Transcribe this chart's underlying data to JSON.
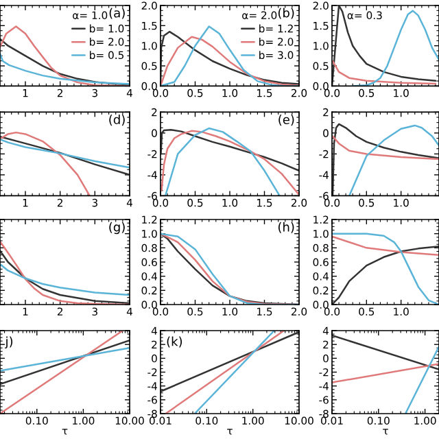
{
  "chart_data": [
    {
      "type": "line",
      "xlim": [
        0.27,
        4
      ],
      "ylim": [
        0,
        2
      ],
      "xticks": [
        1,
        2,
        3,
        4
      ],
      "tick_labels": "x",
      "legend": "right",
      "legend_title": "α= 1.0",
      "annotations": [
        "(a)"
      ],
      "series": [
        {
          "name": "b= 1.0",
          "color": "#333333",
          "x": [
            0.27,
            0.5,
            1,
            1.5,
            2,
            2.5,
            3,
            3.5,
            4
          ],
          "values": [
            1.17,
            1.0,
            0.75,
            0.5,
            0.3,
            0.18,
            0.1,
            0.06,
            0.04
          ]
        },
        {
          "name": "b= 2.0",
          "color": "#e07a7a",
          "x": [
            0.27,
            0.45,
            0.73,
            1,
            1.25,
            1.5,
            1.75,
            2,
            2.5,
            3,
            4
          ],
          "values": [
            0.97,
            1.3,
            1.48,
            1.3,
            1.0,
            0.72,
            0.45,
            0.26,
            0.09,
            0.02,
            0.0
          ]
        },
        {
          "name": "b= 0.5",
          "color": "#5ab4d8",
          "x": [
            0.27,
            0.35,
            0.53,
            1,
            1.5,
            2,
            3,
            4
          ],
          "values": [
            0.8,
            0.62,
            0.52,
            0.38,
            0.26,
            0.18,
            0.09,
            0.05
          ]
        }
      ]
    },
    {
      "type": "line",
      "xlim": [
        0,
        2
      ],
      "ylim": [
        0,
        2
      ],
      "xticks": [
        {
          "value": 0,
          "label": "0.0"
        },
        {
          "value": 0.5,
          "label": "0.5"
        },
        {
          "value": 1,
          "label": "1.0"
        },
        {
          "value": 1.5,
          "label": "1.5"
        },
        {
          "value": 2,
          "label": "2.0"
        }
      ],
      "yticks": [
        {
          "value": 0,
          "label": "0.0"
        },
        {
          "value": 0.5,
          "label": "0.5"
        },
        {
          "value": 1,
          "label": "1.0"
        },
        {
          "value": 1.5,
          "label": "1.5"
        },
        {
          "value": 2,
          "label": "2.0"
        }
      ],
      "legend": "right",
      "legend_title": "α= 2.0",
      "annotations": [
        "(b)"
      ],
      "series": [
        {
          "name": "b= 1.2",
          "color": "#333333",
          "x": [
            0,
            0.01,
            0.05,
            0.13,
            0.25,
            0.5,
            0.75,
            1,
            1.25,
            1.5,
            1.75,
            2
          ],
          "values": [
            0,
            0.95,
            1.25,
            1.35,
            1.22,
            0.89,
            0.62,
            0.43,
            0.27,
            0.15,
            0.08,
            0.05
          ]
        },
        {
          "name": "b= 2.0",
          "color": "#e07a7a",
          "x": [
            0,
            0.1,
            0.25,
            0.45,
            0.6,
            0.75,
            1,
            1.25,
            1.5,
            1.75,
            2
          ],
          "values": [
            0,
            0.5,
            0.95,
            1.22,
            1.15,
            0.98,
            0.6,
            0.3,
            0.12,
            0.04,
            0.01
          ]
        },
        {
          "name": "b= 3.0",
          "color": "#5ab4d8",
          "x": [
            0,
            0.2,
            0.35,
            0.5,
            0.7,
            0.85,
            1,
            1.2,
            1.4,
            1.6,
            1.8,
            2
          ],
          "values": [
            0,
            0.1,
            0.5,
            1.0,
            1.48,
            1.3,
            0.9,
            0.4,
            0.12,
            0.03,
            0,
            0
          ]
        }
      ]
    },
    {
      "type": "line",
      "xlim": [
        0,
        1.55
      ],
      "ylim": [
        0,
        2
      ],
      "xticks": [
        {
          "value": 0,
          "label": "0.0"
        },
        {
          "value": 0.5,
          "label": "0.5"
        },
        {
          "value": 1,
          "label": "1.0"
        }
      ],
      "yticks": [
        {
          "value": 0,
          "label": "0.0"
        },
        {
          "value": 0.5,
          "label": "0.5"
        },
        {
          "value": 1,
          "label": "1.0"
        },
        {
          "value": 1.5,
          "label": "1.5"
        },
        {
          "value": 2,
          "label": "2.0"
        }
      ],
      "legend_title": "α= 0.3",
      "series": [
        {
          "color": "#333333",
          "x": [
            0,
            0.05,
            0.1,
            0.15,
            0.23,
            0.3,
            0.4,
            0.5,
            0.75,
            1,
            1.25,
            1.5
          ],
          "values": [
            0,
            1.0,
            2.0,
            1.85,
            1.33,
            1.0,
            0.75,
            0.55,
            0.35,
            0.23,
            0.17,
            0.13
          ]
        },
        {
          "color": "#e07a7a",
          "x": [
            0.01,
            0.1,
            0.25,
            0.5,
            1,
            1.5
          ],
          "values": [
            0.62,
            0.35,
            0.2,
            0.13,
            0.08,
            0.06
          ]
        },
        {
          "color": "#5ab4d8",
          "x": [
            0.3,
            0.5,
            0.6,
            0.7,
            0.8,
            0.9,
            1,
            1.1,
            1.17,
            1.25,
            1.35,
            1.45,
            1.55
          ],
          "values": [
            0,
            0.02,
            0.08,
            0.2,
            0.5,
            0.95,
            1.4,
            1.78,
            1.87,
            1.75,
            1.4,
            0.95,
            0.65
          ]
        }
      ]
    },
    {
      "type": "line",
      "xlim": [
        0.27,
        4
      ],
      "ylim": [
        -6,
        2
      ],
      "xticks": [
        1,
        2,
        3,
        4
      ],
      "tick_labels": "x",
      "annotations": [
        "(d)"
      ],
      "series": [
        {
          "color": "#333333",
          "x": [
            0.27,
            1,
            2,
            3,
            4
          ],
          "values": [
            -0.35,
            -1.0,
            -1.9,
            -3.0,
            -4.0
          ]
        },
        {
          "color": "#e07a7a",
          "x": [
            0.27,
            0.5,
            0.73,
            1,
            1.5,
            2,
            2.5,
            2.85
          ],
          "values": [
            -0.57,
            -0.1,
            0.05,
            -0.1,
            -0.8,
            -2.1,
            -4.0,
            -6
          ]
        },
        {
          "color": "#5ab4d8",
          "x": [
            0.27,
            0.5,
            1,
            1.5,
            2,
            3,
            4
          ],
          "values": [
            -0.6,
            -0.9,
            -1.35,
            -1.65,
            -1.95,
            -2.7,
            -3.3
          ]
        }
      ]
    },
    {
      "type": "line",
      "xlim": [
        0,
        2
      ],
      "ylim": [
        -6,
        2
      ],
      "xticks": [
        {
          "value": 0,
          "label": "0.0"
        },
        {
          "value": 0.5,
          "label": "0.5"
        },
        {
          "value": 1,
          "label": "1.0"
        },
        {
          "value": 1.5,
          "label": "1.5"
        },
        {
          "value": 2,
          "label": "2.0"
        }
      ],
      "yticks": [
        {
          "value": -6,
          "label": "-6"
        },
        {
          "value": -4,
          "label": "-4"
        },
        {
          "value": -2,
          "label": "-2"
        },
        {
          "value": 0,
          "label": "0"
        },
        {
          "value": 2,
          "label": "2"
        }
      ],
      "annotations": [
        "(e)"
      ],
      "series": [
        {
          "color": "#333333",
          "x": [
            0.005,
            0.02,
            0.05,
            0.15,
            0.3,
            0.5,
            0.75,
            1,
            1.25,
            1.5,
            1.75,
            2
          ],
          "values": [
            -2.0,
            0.0,
            0.25,
            0.3,
            0.15,
            -0.3,
            -0.85,
            -1.3,
            -1.8,
            -2.3,
            -2.9,
            -3.6
          ]
        },
        {
          "color": "#e07a7a",
          "x": [
            0.015,
            0.05,
            0.1,
            0.2,
            0.3,
            0.45,
            0.6,
            0.8,
            1,
            1.3,
            1.5,
            1.75,
            2
          ],
          "values": [
            -5.5,
            -3.0,
            -1.5,
            -0.5,
            -0.1,
            0.2,
            0.1,
            -0.3,
            -0.8,
            -1.75,
            -2.5,
            -3.9,
            -5.9
          ]
        },
        {
          "color": "#5ab4d8",
          "x": [
            0.07,
            0.25,
            0.5,
            0.7,
            0.9,
            1.1,
            1.3,
            1.5,
            1.72
          ],
          "values": [
            -6,
            -2.0,
            -0.2,
            0.45,
            0.1,
            -0.8,
            -1.75,
            -3.6,
            -6
          ]
        }
      ]
    },
    {
      "type": "line",
      "xlim": [
        0,
        1.55
      ],
      "ylim": [
        -6,
        2
      ],
      "xticks": [
        {
          "value": 0,
          "label": "0.0"
        },
        {
          "value": 0.5,
          "label": "0.5"
        },
        {
          "value": 1,
          "label": "1.0"
        }
      ],
      "yticks": [
        {
          "value": -6,
          "label": "-6"
        },
        {
          "value": -4,
          "label": "-4"
        },
        {
          "value": -2,
          "label": "-2"
        },
        {
          "value": 0,
          "label": "0"
        },
        {
          "value": 2,
          "label": "2"
        }
      ],
      "series": [
        {
          "color": "#333333",
          "x": [
            0.01,
            0.03,
            0.06,
            0.1,
            0.2,
            0.35,
            0.5,
            0.75,
            1,
            1.25,
            1.55
          ],
          "values": [
            -6,
            -1,
            0.5,
            0.85,
            0.5,
            -0.3,
            -0.85,
            -1.4,
            -1.8,
            -2.1,
            -2.4
          ]
        },
        {
          "color": "#e07a7a",
          "x": [
            0.01,
            0.1,
            0.25,
            0.5,
            1,
            1.55
          ],
          "values": [
            -0.3,
            -1.0,
            -1.7,
            -2.0,
            -2.3,
            -2.5
          ]
        },
        {
          "color": "#5ab4d8",
          "x": [
            0.25,
            0.5,
            0.75,
            1,
            1.2,
            1.3,
            1.45,
            1.55
          ],
          "values": [
            -6,
            -2.2,
            -0.7,
            0.4,
            0.72,
            0.5,
            -0.3,
            -1.2
          ]
        }
      ]
    },
    {
      "type": "line",
      "xlim": [
        0.27,
        4
      ],
      "ylim": [
        0,
        1.2
      ],
      "xticks": [
        1,
        2,
        3,
        4
      ],
      "tick_labels": "x",
      "annotations": [
        "(g)"
      ],
      "series": [
        {
          "color": "#333333",
          "x": [
            0.27,
            0.5,
            1,
            1.5,
            2,
            3,
            4
          ],
          "values": [
            0.76,
            0.6,
            0.37,
            0.22,
            0.135,
            0.05,
            0.02
          ]
        },
        {
          "color": "#e07a7a",
          "x": [
            0.27,
            0.5,
            0.75,
            1,
            1.25,
            1.5,
            2,
            2.5,
            3,
            4
          ],
          "values": [
            0.89,
            0.73,
            0.55,
            0.36,
            0.23,
            0.135,
            0.05,
            0.02,
            0.01,
            0.0
          ]
        },
        {
          "color": "#5ab4d8",
          "x": [
            0.27,
            0.5,
            1,
            1.5,
            2,
            3,
            4
          ],
          "values": [
            0.57,
            0.48,
            0.37,
            0.29,
            0.24,
            0.17,
            0.135
          ]
        }
      ]
    },
    {
      "type": "line",
      "xlim": [
        0,
        2
      ],
      "ylim": [
        0,
        1.2
      ],
      "xticks": [
        {
          "value": 0,
          "label": "0.0"
        },
        {
          "value": 0.5,
          "label": "0.5"
        },
        {
          "value": 1,
          "label": "1.0"
        },
        {
          "value": 1.5,
          "label": "1.5"
        },
        {
          "value": 2,
          "label": "2.0"
        }
      ],
      "yticks": [
        {
          "value": 0,
          "label": "0.0"
        },
        {
          "value": 0.2,
          "label": "0.2"
        },
        {
          "value": 0.4,
          "label": "0.4"
        },
        {
          "value": 0.6,
          "label": "0.6"
        },
        {
          "value": 0.8,
          "label": "0.8"
        },
        {
          "value": 1,
          "label": "1.0"
        },
        {
          "value": 1.2,
          "label": "1.2"
        }
      ],
      "annotations": [
        "(h)"
      ],
      "series": [
        {
          "color": "#333333",
          "x": [
            0,
            0.1,
            0.25,
            0.5,
            0.75,
            1,
            1.25,
            1.5,
            2
          ],
          "values": [
            1.0,
            0.93,
            0.75,
            0.5,
            0.27,
            0.12,
            0.05,
            0.02,
            0.0
          ]
        },
        {
          "color": "#e07a7a",
          "x": [
            0,
            0.25,
            0.5,
            0.75,
            1,
            1.25,
            1.5,
            2
          ],
          "values": [
            1.0,
            0.88,
            0.63,
            0.33,
            0.12,
            0.04,
            0.01,
            0.0
          ]
        },
        {
          "color": "#5ab4d8",
          "x": [
            0,
            0.25,
            0.5,
            0.75,
            1,
            1.25,
            1.5,
            2
          ],
          "values": [
            1.0,
            0.96,
            0.78,
            0.43,
            0.12,
            0.02,
            0.0,
            0.0
          ]
        }
      ]
    },
    {
      "type": "line",
      "xlim": [
        0,
        1.55
      ],
      "ylim": [
        0,
        1.2
      ],
      "xticks": [
        {
          "value": 0,
          "label": "0.0"
        },
        {
          "value": 0.5,
          "label": "0.5"
        },
        {
          "value": 1,
          "label": "1.0"
        }
      ],
      "yticks": [
        {
          "value": 0,
          "label": "0.0"
        },
        {
          "value": 0.2,
          "label": "0.2"
        },
        {
          "value": 0.4,
          "label": "0.4"
        },
        {
          "value": 0.6,
          "label": "0.6"
        },
        {
          "value": 0.8,
          "label": "0.8"
        },
        {
          "value": 1,
          "label": "1.0"
        },
        {
          "value": 1.2,
          "label": "1.2"
        }
      ],
      "series": [
        {
          "color": "#333333",
          "x": [
            0,
            0.1,
            0.25,
            0.5,
            0.75,
            1,
            1.25,
            1.55
          ],
          "values": [
            0,
            0.1,
            0.33,
            0.55,
            0.67,
            0.75,
            0.79,
            0.82
          ]
        },
        {
          "color": "#e07a7a",
          "x": [
            0,
            0.5,
            1,
            1.55
          ],
          "values": [
            0.96,
            0.8,
            0.74,
            0.7
          ]
        },
        {
          "color": "#5ab4d8",
          "x": [
            0,
            0.5,
            0.75,
            0.9,
            1,
            1.1,
            1.25,
            1.4,
            1.55
          ],
          "values": [
            1.0,
            1.0,
            0.97,
            0.88,
            0.75,
            0.55,
            0.25,
            0.06,
            0.0
          ]
        }
      ]
    },
    {
      "type": "line",
      "log": "x",
      "xlim": [
        0.016,
        10
      ],
      "ylim": [
        -8,
        4
      ],
      "xlabel": "τ",
      "xticks": [
        {
          "value": 0.1,
          "label": "0.10"
        },
        {
          "value": 1,
          "label": "1.00"
        },
        {
          "value": 10,
          "label": "10.00"
        }
      ],
      "tick_labels": "x",
      "annotations": [
        "j)"
      ],
      "series": [
        {
          "color": "#333333",
          "x": [
            0.016,
            10
          ],
          "values": [
            -3.75,
            2.6
          ]
        },
        {
          "color": "#e07a7a",
          "x": [
            0.016,
            7.1
          ],
          "values": [
            -8,
            4
          ]
        },
        {
          "color": "#5ab4d8",
          "x": [
            0.016,
            10
          ],
          "values": [
            -1.8,
            1.5
          ]
        }
      ]
    },
    {
      "type": "line",
      "log": "x",
      "xlim": [
        0.01,
        10
      ],
      "ylim": [
        -8,
        4
      ],
      "xlabel": "τ",
      "xticks": [
        {
          "value": 0.01,
          "label": "0.01"
        },
        {
          "value": 0.1,
          "label": "0.10"
        },
        {
          "value": 1,
          "label": "1.00"
        },
        {
          "value": 10,
          "label": "10.00"
        }
      ],
      "yticks": [
        {
          "value": -8,
          "label": "-8"
        },
        {
          "value": -6,
          "label": "-6"
        },
        {
          "value": -4,
          "label": "-4"
        },
        {
          "value": -2,
          "label": "-2"
        },
        {
          "value": 0,
          "label": "0"
        },
        {
          "value": 2,
          "label": "2"
        },
        {
          "value": 4,
          "label": "4"
        }
      ],
      "annotations": [
        "(k)"
      ],
      "series": [
        {
          "color": "#333333",
          "x": [
            0.01,
            10
          ],
          "values": [
            -4.8,
            3.8
          ]
        },
        {
          "color": "#e07a7a",
          "x": [
            0.013,
            4.7
          ],
          "values": [
            -8,
            4
          ]
        },
        {
          "color": "#5ab4d8",
          "x": [
            0.055,
            2.9
          ],
          "values": [
            -8,
            4
          ]
        }
      ]
    },
    {
      "type": "line",
      "log": "x",
      "xlim": [
        0.01,
        2
      ],
      "ylim": [
        -8,
        4
      ],
      "xlabel": "τ",
      "xticks": [
        {
          "value": 0.01,
          "label": "0.01"
        },
        {
          "value": 0.1,
          "label": "0.10"
        },
        {
          "value": 1,
          "label": "1.00"
        }
      ],
      "yticks": [
        {
          "value": -8,
          "label": "-8"
        },
        {
          "value": -6,
          "label": "-6"
        },
        {
          "value": -4,
          "label": "-4"
        },
        {
          "value": -2,
          "label": "-2"
        },
        {
          "value": 0,
          "label": "0"
        },
        {
          "value": 2,
          "label": "2"
        },
        {
          "value": 4,
          "label": "4"
        }
      ],
      "series": [
        {
          "color": "#333333",
          "x": [
            0.01,
            2
          ],
          "values": [
            3.3,
            -1.6
          ]
        },
        {
          "color": "#e07a7a",
          "x": [
            0.01,
            2
          ],
          "values": [
            -3.5,
            -0.8
          ]
        },
        {
          "color": "#5ab4d8",
          "x": [
            0.38,
            2
          ],
          "values": [
            -8,
            1.7
          ]
        }
      ]
    }
  ]
}
